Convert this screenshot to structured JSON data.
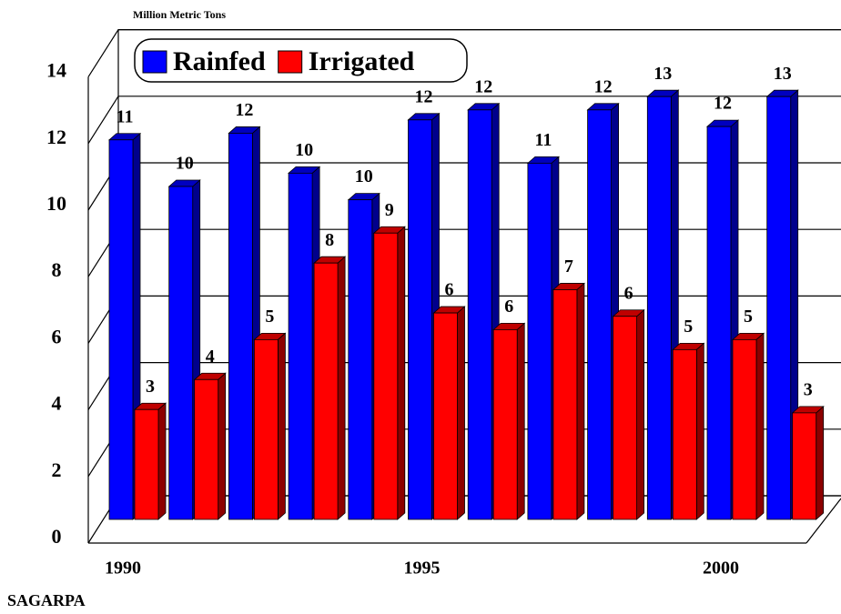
{
  "chart_data": {
    "type": "bar3d",
    "axis_title": "Million Metric Tons",
    "source": "SAGARPA",
    "categories": [
      "1990",
      null,
      null,
      null,
      null,
      "1995",
      null,
      null,
      null,
      null,
      "2000",
      null
    ],
    "series": [
      {
        "name": "Rainfed",
        "color": "#0000ff",
        "values": [
          11.4,
          10.0,
          11.6,
          10.4,
          9.6,
          12.0,
          12.3,
          10.7,
          12.3,
          12.7,
          11.8,
          12.7
        ],
        "value_labels": [
          "11",
          "10",
          "12",
          "10",
          "10",
          "12",
          "12",
          "11",
          "12",
          "13",
          "12",
          "13"
        ]
      },
      {
        "name": "Irrigated",
        "color": "#ff0000",
        "values": [
          3.3,
          4.2,
          5.4,
          7.7,
          8.6,
          6.2,
          5.7,
          6.9,
          6.1,
          5.1,
          5.4,
          3.2
        ],
        "value_labels": [
          "3",
          "4",
          "5",
          "8",
          "9",
          "6",
          "6",
          "7",
          "6",
          "5",
          "5",
          "3"
        ]
      }
    ],
    "ylim": [
      0,
      14
    ],
    "yticks": [
      0,
      2,
      4,
      6,
      8,
      10,
      12,
      14
    ],
    "grid": true,
    "legend": "top-left"
  }
}
